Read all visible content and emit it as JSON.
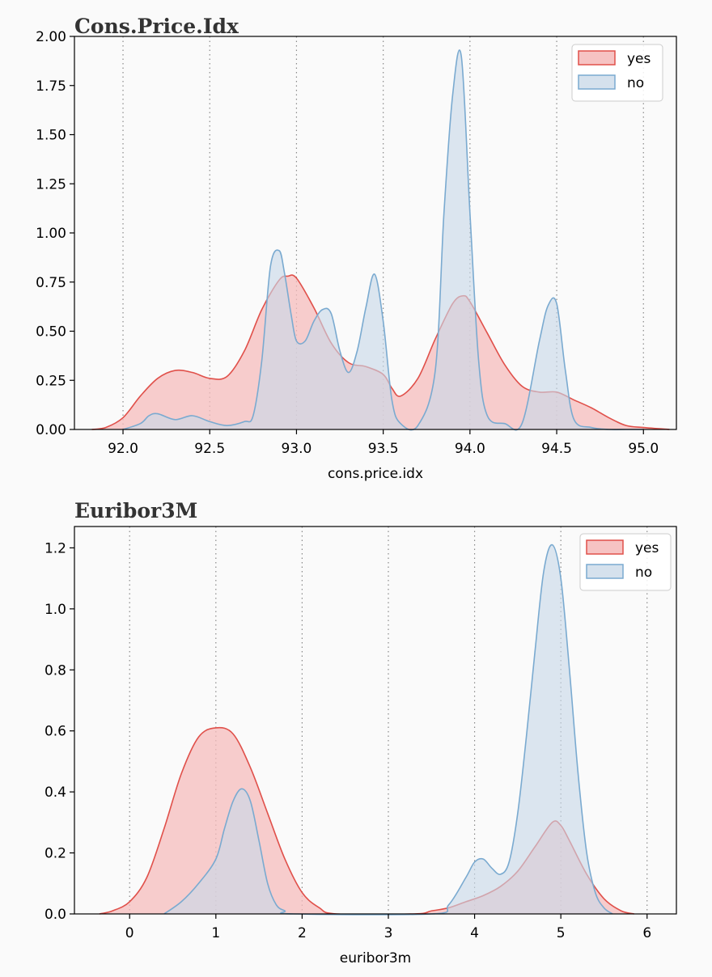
{
  "chart_data": [
    {
      "type": "area",
      "title": "Cons.Price.Idx",
      "xlabel": "cons.price.idx",
      "ylabel": "",
      "xlim": [
        91.72,
        95.19
      ],
      "ylim": [
        0,
        2.0
      ],
      "xticks": [
        92.0,
        92.5,
        93.0,
        93.5,
        94.0,
        94.5,
        95.0
      ],
      "xtick_labels": [
        "92.0",
        "92.5",
        "93.0",
        "93.5",
        "94.0",
        "94.5",
        "95.0"
      ],
      "yticks": [
        0,
        0.25,
        0.5,
        0.75,
        1.0,
        1.25,
        1.5,
        1.75,
        2.0
      ],
      "ytick_labels": [
        "0.00",
        "0.25",
        "0.50",
        "0.75",
        "1.00",
        "1.25",
        "1.50",
        "1.75",
        "2.00"
      ],
      "grid": "vertical dotted",
      "legend": [
        "yes",
        "no"
      ],
      "legend_position": "top-right",
      "series": [
        {
          "name": "yes",
          "x": [
            91.82,
            91.9,
            92.0,
            92.1,
            92.2,
            92.3,
            92.4,
            92.5,
            92.6,
            92.7,
            92.8,
            92.9,
            92.95,
            93.0,
            93.1,
            93.2,
            93.3,
            93.4,
            93.5,
            93.55,
            93.6,
            93.7,
            93.8,
            93.9,
            93.96,
            94.0,
            94.1,
            94.2,
            94.3,
            94.4,
            94.5,
            94.6,
            94.7,
            94.8,
            94.9,
            95.0,
            95.15
          ],
          "values": [
            0.0,
            0.01,
            0.06,
            0.17,
            0.26,
            0.3,
            0.29,
            0.26,
            0.27,
            0.4,
            0.61,
            0.76,
            0.78,
            0.77,
            0.62,
            0.44,
            0.34,
            0.32,
            0.28,
            0.21,
            0.17,
            0.26,
            0.46,
            0.64,
            0.68,
            0.65,
            0.49,
            0.33,
            0.22,
            0.19,
            0.19,
            0.15,
            0.11,
            0.06,
            0.02,
            0.01,
            0.0
          ]
        },
        {
          "name": "no",
          "x": [
            92.0,
            92.1,
            92.15,
            92.2,
            92.3,
            92.4,
            92.5,
            92.6,
            92.7,
            92.75,
            92.8,
            92.85,
            92.9,
            92.93,
            92.97,
            93.0,
            93.05,
            93.1,
            93.15,
            93.2,
            93.25,
            93.3,
            93.35,
            93.4,
            93.45,
            93.5,
            93.55,
            93.6,
            93.7,
            93.8,
            93.85,
            93.9,
            93.95,
            94.0,
            94.05,
            94.1,
            94.2,
            94.3,
            94.4,
            94.45,
            94.5,
            94.55,
            94.6,
            94.7,
            94.8,
            94.9,
            95.0
          ],
          "values": [
            0.0,
            0.03,
            0.07,
            0.08,
            0.05,
            0.07,
            0.04,
            0.02,
            0.04,
            0.07,
            0.35,
            0.83,
            0.91,
            0.8,
            0.58,
            0.45,
            0.45,
            0.55,
            0.61,
            0.59,
            0.4,
            0.29,
            0.4,
            0.62,
            0.79,
            0.55,
            0.15,
            0.03,
            0.02,
            0.3,
            1.1,
            1.7,
            1.9,
            1.1,
            0.35,
            0.07,
            0.03,
            0.03,
            0.45,
            0.63,
            0.64,
            0.3,
            0.05,
            0.01,
            0.0,
            0.0,
            0.0
          ]
        }
      ]
    },
    {
      "type": "area",
      "title": "Euribor3M",
      "xlabel": "euribor3m",
      "ylabel": "",
      "xlim": [
        -0.64,
        6.34
      ],
      "ylim": [
        0,
        1.27
      ],
      "xticks": [
        0,
        1,
        2,
        3,
        4,
        5,
        6
      ],
      "xtick_labels": [
        "0",
        "1",
        "2",
        "3",
        "4",
        "5",
        "6"
      ],
      "yticks": [
        0,
        0.2,
        0.4,
        0.6,
        0.8,
        1.0,
        1.2
      ],
      "ytick_labels": [
        "0.0",
        "0.2",
        "0.4",
        "0.6",
        "0.8",
        "1.0",
        "1.2"
      ],
      "grid": "vertical dotted",
      "legend": [
        "yes",
        "no"
      ],
      "legend_position": "top-right",
      "series": [
        {
          "name": "yes",
          "x": [
            -0.35,
            -0.2,
            0.0,
            0.2,
            0.4,
            0.6,
            0.8,
            1.0,
            1.2,
            1.4,
            1.6,
            1.8,
            2.0,
            2.2,
            2.4,
            3.3,
            3.5,
            3.7,
            3.9,
            4.1,
            4.3,
            4.5,
            4.7,
            4.9,
            5.0,
            5.1,
            5.3,
            5.5,
            5.7,
            5.85
          ],
          "values": [
            0.0,
            0.01,
            0.04,
            0.12,
            0.28,
            0.46,
            0.58,
            0.61,
            0.59,
            0.48,
            0.33,
            0.18,
            0.07,
            0.02,
            0.0,
            0.0,
            0.01,
            0.02,
            0.04,
            0.06,
            0.09,
            0.14,
            0.22,
            0.3,
            0.29,
            0.24,
            0.13,
            0.05,
            0.01,
            0.0
          ]
        },
        {
          "name": "no",
          "x": [
            0.4,
            0.6,
            0.8,
            1.0,
            1.1,
            1.2,
            1.3,
            1.4,
            1.5,
            1.6,
            1.7,
            1.8,
            1.9,
            3.5,
            3.7,
            3.9,
            4.0,
            4.1,
            4.2,
            4.3,
            4.4,
            4.5,
            4.6,
            4.7,
            4.8,
            4.9,
            5.0,
            5.1,
            5.2,
            5.3,
            5.4,
            5.5,
            5.6
          ],
          "values": [
            0.0,
            0.04,
            0.1,
            0.18,
            0.28,
            0.37,
            0.41,
            0.37,
            0.24,
            0.1,
            0.03,
            0.01,
            0.0,
            0.0,
            0.03,
            0.12,
            0.17,
            0.18,
            0.15,
            0.13,
            0.17,
            0.33,
            0.58,
            0.86,
            1.12,
            1.21,
            1.1,
            0.8,
            0.46,
            0.2,
            0.07,
            0.02,
            0.0
          ]
        }
      ]
    }
  ],
  "colors": {
    "yes_line": "#e0504a",
    "yes_fill": "#f5bcbc",
    "no_line": "#7aaad0",
    "no_fill": "#c8d8e8"
  }
}
